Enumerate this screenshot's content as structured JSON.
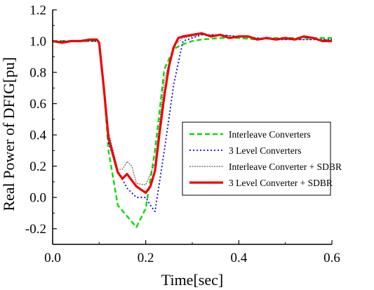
{
  "chart_data": {
    "type": "line",
    "xlabel": "Time[sec]",
    "ylabel": "Real Power of DFIG[pu]",
    "xlim": [
      0.0,
      0.6
    ],
    "ylim": [
      -0.3,
      1.2
    ],
    "xticks": [
      "0.0",
      "0.2",
      "0.4",
      "0.6"
    ],
    "xtick_values": [
      0.0,
      0.2,
      0.4,
      0.6
    ],
    "yticks": [
      "-0.2",
      "0.0",
      "0.2",
      "0.4",
      "0.6",
      "0.8",
      "1.0",
      "1.2"
    ],
    "ytick_values": [
      -0.2,
      0.0,
      0.2,
      0.4,
      0.6,
      0.8,
      1.0,
      1.2
    ],
    "grid": false,
    "legend_position": "center-right",
    "series": [
      {
        "name": "Interleave Converters",
        "color": "#00dd00",
        "style": "dashed",
        "x": [
          0.0,
          0.02,
          0.04,
          0.06,
          0.08,
          0.095,
          0.1,
          0.11,
          0.12,
          0.14,
          0.16,
          0.18,
          0.2,
          0.22,
          0.24,
          0.26,
          0.28,
          0.3,
          0.32,
          0.36,
          0.4,
          0.44,
          0.48,
          0.52,
          0.56,
          0.6
        ],
        "y": [
          1.0,
          1.0,
          1.0,
          1.0,
          1.0,
          1.0,
          0.99,
          0.7,
          0.3,
          -0.05,
          -0.12,
          -0.19,
          -0.07,
          0.3,
          0.82,
          0.95,
          0.98,
          1.0,
          1.01,
          1.02,
          1.02,
          1.01,
          1.02,
          1.02,
          1.02,
          1.02
        ]
      },
      {
        "name": "3 Level Converters",
        "color": "#0000ee",
        "style": "dotted",
        "x": [
          0.0,
          0.02,
          0.04,
          0.06,
          0.08,
          0.095,
          0.1,
          0.11,
          0.12,
          0.14,
          0.16,
          0.18,
          0.2,
          0.21,
          0.22,
          0.24,
          0.26,
          0.28,
          0.3,
          0.32,
          0.36,
          0.4,
          0.44,
          0.48,
          0.52,
          0.56,
          0.6
        ],
        "y": [
          1.0,
          1.0,
          1.0,
          1.0,
          1.0,
          1.0,
          0.99,
          0.72,
          0.35,
          0.17,
          0.06,
          0.0,
          0.0,
          -0.05,
          -0.09,
          0.3,
          0.72,
          1.0,
          1.02,
          1.04,
          1.04,
          1.03,
          1.02,
          1.01,
          1.01,
          1.01,
          1.01
        ]
      },
      {
        "name": "Interleave Converter + SDBR",
        "color": "#333333",
        "style": "dotted-thin",
        "x": [
          0.0,
          0.02,
          0.04,
          0.06,
          0.08,
          0.095,
          0.1,
          0.11,
          0.12,
          0.14,
          0.15,
          0.16,
          0.17,
          0.18,
          0.2,
          0.22,
          0.24,
          0.26,
          0.28,
          0.3,
          0.32,
          0.36,
          0.4,
          0.44,
          0.48,
          0.52,
          0.56,
          0.6
        ],
        "y": [
          1.0,
          1.0,
          1.0,
          1.0,
          1.0,
          1.0,
          0.99,
          0.72,
          0.42,
          0.18,
          0.18,
          0.23,
          0.2,
          0.09,
          0.08,
          0.22,
          0.75,
          0.97,
          1.02,
          1.03,
          1.04,
          1.04,
          1.03,
          1.02,
          1.01,
          1.01,
          1.01,
          1.01
        ]
      },
      {
        "name": "3 Level Converter + SDBR",
        "color": "#ee0000",
        "style": "solid",
        "x": [
          0.0,
          0.02,
          0.04,
          0.06,
          0.08,
          0.095,
          0.1,
          0.11,
          0.12,
          0.14,
          0.15,
          0.16,
          0.18,
          0.2,
          0.21,
          0.22,
          0.23,
          0.24,
          0.25,
          0.26,
          0.27,
          0.28,
          0.3,
          0.32,
          0.34,
          0.36,
          0.38,
          0.4,
          0.42,
          0.44,
          0.46,
          0.48,
          0.5,
          0.52,
          0.54,
          0.56,
          0.58,
          0.6
        ],
        "y": [
          1.0,
          0.99,
          1.0,
          1.0,
          1.01,
          1.01,
          0.99,
          0.7,
          0.38,
          0.16,
          0.12,
          0.15,
          0.07,
          0.03,
          0.07,
          0.17,
          0.42,
          0.65,
          0.84,
          0.96,
          1.02,
          1.03,
          1.04,
          1.05,
          1.03,
          1.04,
          1.02,
          1.03,
          1.03,
          1.01,
          1.02,
          1.01,
          1.02,
          1.01,
          1.03,
          1.02,
          1.0,
          1.0
        ]
      }
    ]
  }
}
